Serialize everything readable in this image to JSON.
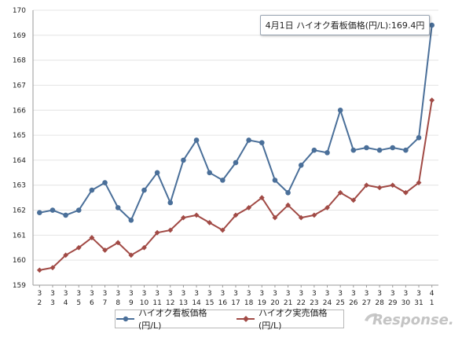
{
  "chart_data": {
    "type": "line",
    "title": "",
    "xlabel": "",
    "ylabel": "",
    "ylim": [
      159,
      170
    ],
    "yticks": [
      159,
      160,
      161,
      162,
      163,
      164,
      165,
      166,
      167,
      168,
      169,
      170
    ],
    "grid": true,
    "legend_position": "bottom",
    "categories": [
      {
        "month": "3",
        "day": "2"
      },
      {
        "month": "3",
        "day": "3"
      },
      {
        "month": "3",
        "day": "4"
      },
      {
        "month": "3",
        "day": "5"
      },
      {
        "month": "3",
        "day": "6"
      },
      {
        "month": "3",
        "day": "7"
      },
      {
        "month": "3",
        "day": "8"
      },
      {
        "month": "3",
        "day": "9"
      },
      {
        "month": "3",
        "day": "10"
      },
      {
        "month": "3",
        "day": "11"
      },
      {
        "month": "3",
        "day": "12"
      },
      {
        "month": "3",
        "day": "13"
      },
      {
        "month": "3",
        "day": "14"
      },
      {
        "month": "3",
        "day": "15"
      },
      {
        "month": "3",
        "day": "16"
      },
      {
        "month": "3",
        "day": "17"
      },
      {
        "month": "3",
        "day": "18"
      },
      {
        "month": "3",
        "day": "19"
      },
      {
        "month": "3",
        "day": "20"
      },
      {
        "month": "3",
        "day": "21"
      },
      {
        "month": "3",
        "day": "22"
      },
      {
        "month": "3",
        "day": "23"
      },
      {
        "month": "3",
        "day": "24"
      },
      {
        "month": "3",
        "day": "25"
      },
      {
        "month": "3",
        "day": "26"
      },
      {
        "month": "3",
        "day": "27"
      },
      {
        "month": "3",
        "day": "28"
      },
      {
        "month": "3",
        "day": "29"
      },
      {
        "month": "3",
        "day": "30"
      },
      {
        "month": "3",
        "day": "31"
      },
      {
        "month": "4",
        "day": "1"
      }
    ],
    "series": [
      {
        "name": "ハイオク看板価格(円/L)",
        "color": "#4a6f99",
        "marker": "circle",
        "values": [
          161.9,
          162.0,
          161.8,
          162.0,
          162.8,
          163.1,
          162.1,
          161.6,
          162.8,
          163.5,
          162.3,
          164.0,
          164.8,
          163.5,
          163.2,
          163.9,
          164.8,
          164.7,
          163.2,
          162.7,
          163.8,
          164.4,
          164.3,
          166.0,
          164.4,
          164.5,
          164.4,
          164.5,
          164.4,
          164.9,
          169.4
        ]
      },
      {
        "name": "ハイオク実売価格(円/L)",
        "color": "#a14a45",
        "marker": "diamond",
        "values": [
          159.6,
          159.7,
          160.2,
          160.5,
          160.9,
          160.4,
          160.7,
          160.2,
          160.5,
          161.1,
          161.2,
          161.7,
          161.8,
          161.5,
          161.2,
          161.8,
          162.1,
          162.5,
          161.7,
          162.2,
          161.7,
          161.8,
          162.1,
          162.7,
          162.4,
          163.0,
          162.9,
          163.0,
          162.7,
          163.1,
          166.4
        ]
      }
    ],
    "annotation": {
      "text": "4月1日 ハイオク看板価格(円/L):169.4円",
      "series_index": 0,
      "point_index": 30
    }
  },
  "watermark": {
    "text": "Response."
  }
}
